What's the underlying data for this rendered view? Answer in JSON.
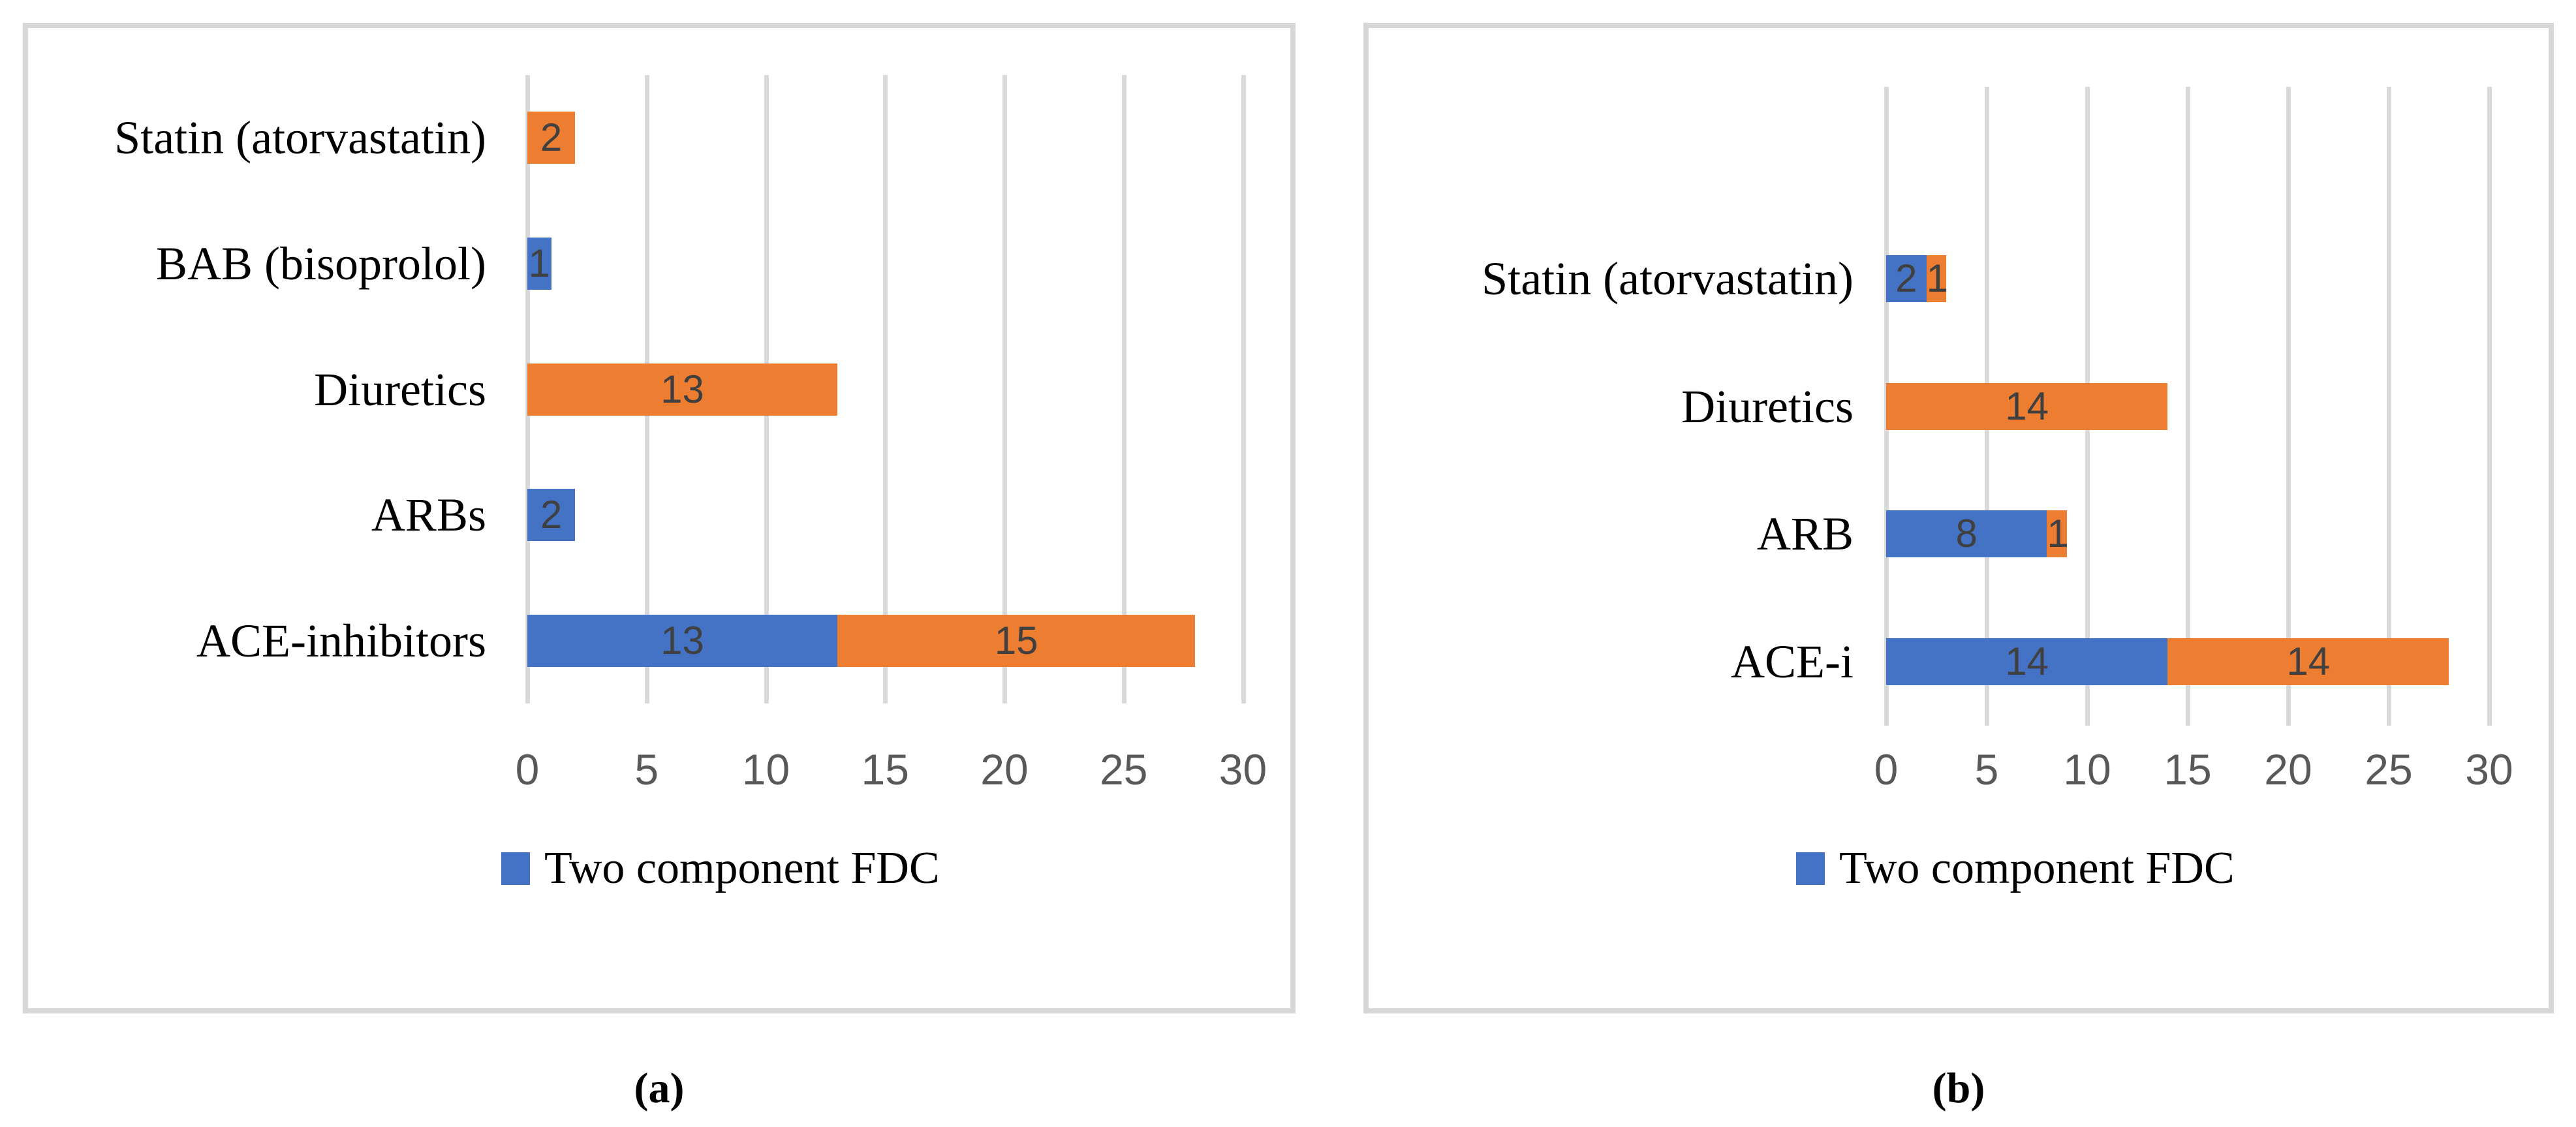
{
  "figure": {
    "series_colors": {
      "s1": "#4472C4",
      "s2": "#ED7D31"
    },
    "data_label_color": "#404040",
    "axis_label_color": "#595959",
    "gridline_color": "#d9d9d9",
    "panel_border_color": "#d7d7d7",
    "panels": [
      {
        "id": "a",
        "caption": "(a)",
        "axis_ticks": [
          0,
          5,
          10,
          15,
          20,
          25,
          30
        ],
        "axis_max": 30,
        "legend": [
          {
            "series": "s1",
            "label": "Two component FDC"
          }
        ],
        "categories": [
          {
            "label": "Statin (atorvastatin)",
            "segments": [
              {
                "series": "s2",
                "value": 2
              }
            ]
          },
          {
            "label": "BAB (bisoprolol)",
            "segments": [
              {
                "series": "s1",
                "value": 1
              }
            ]
          },
          {
            "label": "Diuretics",
            "segments": [
              {
                "series": "s2",
                "value": 13
              }
            ]
          },
          {
            "label": "ARBs",
            "segments": [
              {
                "series": "s1",
                "value": 2
              }
            ]
          },
          {
            "label": "ACE-inhibitors",
            "segments": [
              {
                "series": "s1",
                "value": 13
              },
              {
                "series": "s2",
                "value": 15
              }
            ]
          }
        ]
      },
      {
        "id": "b",
        "caption": "(b)",
        "axis_ticks": [
          0,
          5,
          10,
          15,
          20,
          25,
          30
        ],
        "axis_max": 30,
        "legend": [
          {
            "series": "s1",
            "label": "Two component FDC"
          }
        ],
        "categories": [
          {
            "label": "Statin (atorvastatin)",
            "segments": [
              {
                "series": "s1",
                "value": 2
              },
              {
                "series": "s2",
                "value": 1
              }
            ]
          },
          {
            "label": "Diuretics",
            "segments": [
              {
                "series": "s2",
                "value": 14
              }
            ]
          },
          {
            "label": "ARB",
            "segments": [
              {
                "series": "s1",
                "value": 8
              },
              {
                "series": "s2",
                "value": 1
              }
            ]
          },
          {
            "label": "ACE-i",
            "segments": [
              {
                "series": "s1",
                "value": 14
              },
              {
                "series": "s2",
                "value": 14
              }
            ]
          }
        ]
      }
    ]
  },
  "chart_data": [
    {
      "type": "bar",
      "orientation": "horizontal",
      "stacked": true,
      "title": "(a)",
      "categories": [
        "Statin (atorvastatin)",
        "BAB (bisoprolol)",
        "Diuretics",
        "ARBs",
        "ACE-inhibitors"
      ],
      "series": [
        {
          "name": "Two component FDC",
          "color": "#4472C4",
          "values": [
            0,
            1,
            0,
            2,
            13
          ]
        },
        {
          "name": "series_2_unlabeled",
          "color": "#ED7D31",
          "values": [
            2,
            0,
            13,
            0,
            15
          ]
        }
      ],
      "xlabel": "",
      "ylabel": "",
      "xlim": [
        0,
        30
      ],
      "xticks": [
        0,
        5,
        10,
        15,
        20,
        25,
        30
      ],
      "grid": "vertical",
      "legend_position": "bottom",
      "legend_entries_visible": [
        "Two component FDC"
      ]
    },
    {
      "type": "bar",
      "orientation": "horizontal",
      "stacked": true,
      "title": "(b)",
      "categories": [
        "Statin (atorvastatin)",
        "Diuretics",
        "ARB",
        "ACE-i"
      ],
      "series": [
        {
          "name": "Two component FDC",
          "color": "#4472C4",
          "values": [
            2,
            0,
            8,
            14
          ]
        },
        {
          "name": "series_2_unlabeled",
          "color": "#ED7D31",
          "values": [
            1,
            14,
            1,
            14
          ]
        }
      ],
      "xlabel": "",
      "ylabel": "",
      "xlim": [
        0,
        30
      ],
      "xticks": [
        0,
        5,
        10,
        15,
        20,
        25,
        30
      ],
      "grid": "vertical",
      "legend_position": "bottom",
      "legend_entries_visible": [
        "Two component FDC"
      ]
    }
  ]
}
